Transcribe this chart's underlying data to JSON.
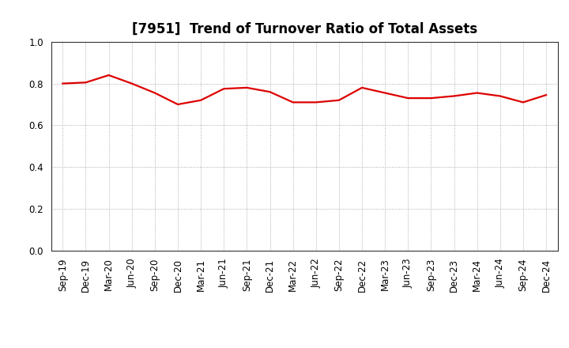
{
  "title": "[7951]  Trend of Turnover Ratio of Total Assets",
  "labels": [
    "Sep-19",
    "Dec-19",
    "Mar-20",
    "Jun-20",
    "Sep-20",
    "Dec-20",
    "Mar-21",
    "Jun-21",
    "Sep-21",
    "Dec-21",
    "Mar-22",
    "Jun-22",
    "Sep-22",
    "Dec-22",
    "Mar-23",
    "Jun-23",
    "Sep-23",
    "Dec-23",
    "Mar-24",
    "Jun-24",
    "Sep-24",
    "Dec-24"
  ],
  "values": [
    0.8,
    0.805,
    0.84,
    0.8,
    0.755,
    0.7,
    0.72,
    0.775,
    0.78,
    0.76,
    0.71,
    0.71,
    0.72,
    0.78,
    0.755,
    0.73,
    0.73,
    0.74,
    0.755,
    0.74,
    0.71,
    0.745
  ],
  "line_color": "#dd0000",
  "line_width": 1.6,
  "ylim": [
    0.0,
    1.0
  ],
  "yticks": [
    0.0,
    0.2,
    0.4,
    0.6,
    0.8,
    1.0
  ],
  "background_color": "#ffffff",
  "grid_color": "#999999",
  "title_fontsize": 12,
  "tick_fontsize": 8.5
}
